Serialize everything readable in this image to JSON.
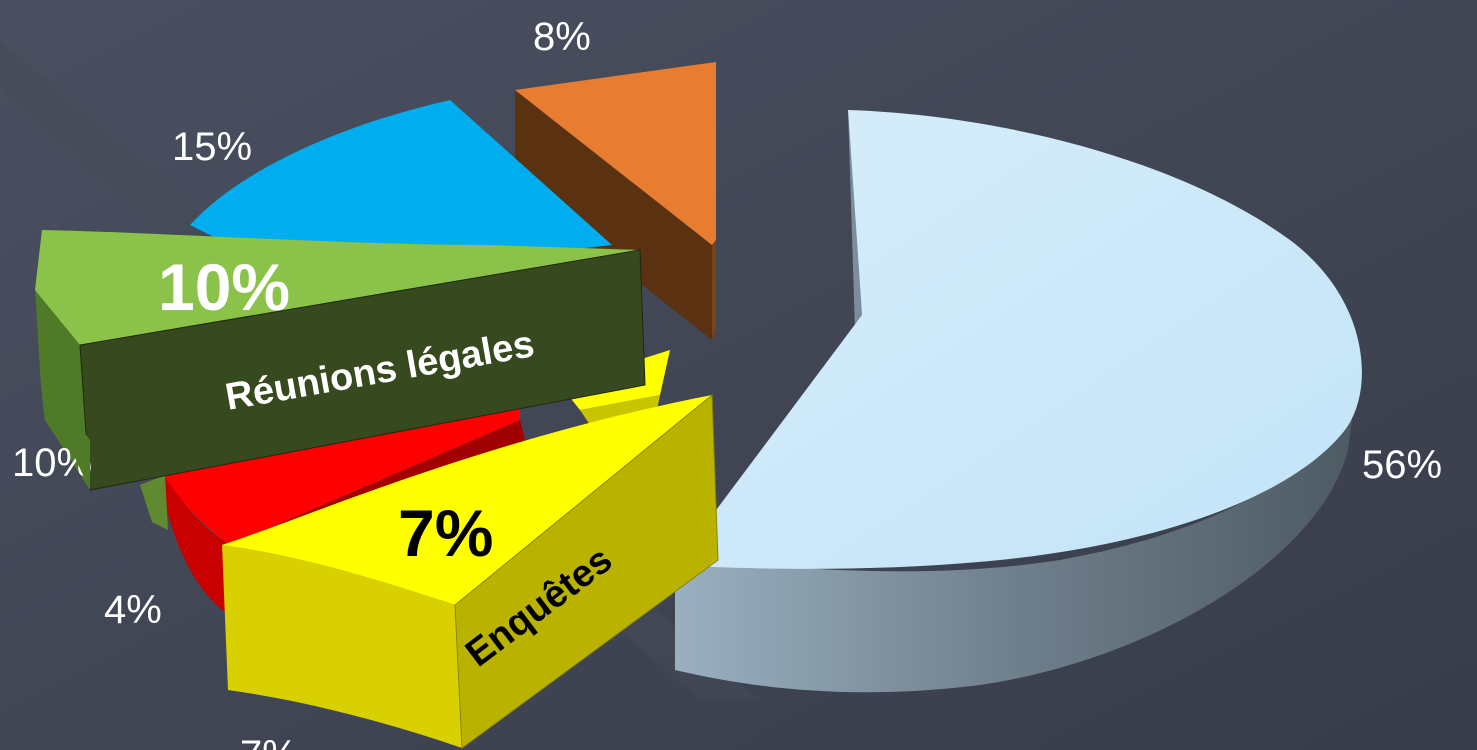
{
  "chart_data": {
    "type": "pie",
    "variant": "3d-exploded",
    "slices": [
      {
        "value": 56,
        "label": "56%",
        "color": "#c8e6f8"
      },
      {
        "value": 8,
        "label": "8%",
        "color": "#e87d31"
      },
      {
        "value": 15,
        "label": "15%",
        "color": "#00aeef"
      },
      {
        "value": 10,
        "label": "10%",
        "color": "#8bc34a"
      },
      {
        "value": 4,
        "label": "4%",
        "color": "#ff0000"
      },
      {
        "value": 7,
        "label": "7%",
        "color": "#ffff00"
      }
    ],
    "callouts": [
      {
        "value_label": "10%",
        "name": "Réunions légales",
        "color": "#8bc34a"
      },
      {
        "value_label": "7%",
        "name": "Enquêtes",
        "color": "#f4ee00"
      }
    ],
    "background": "#3d4251"
  }
}
